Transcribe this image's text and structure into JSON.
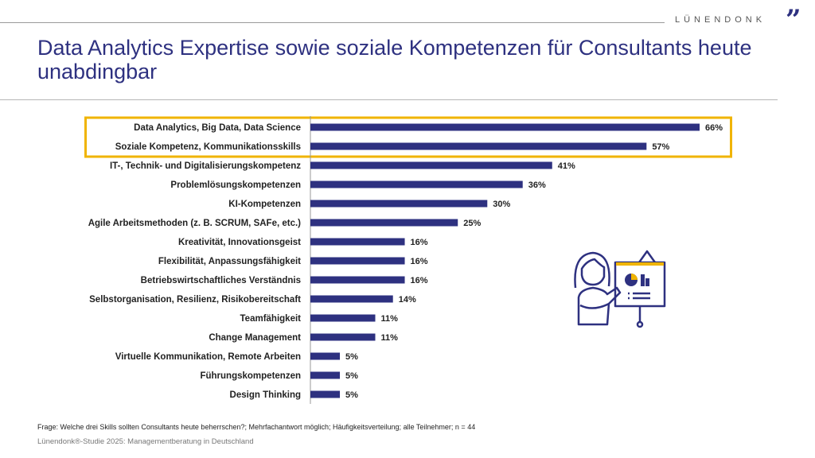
{
  "header": {
    "brand": "LÜNENDONK",
    "title": "Data Analytics Expertise sowie soziale Kompetenzen für Consultants heute unabdingbar"
  },
  "colors": {
    "bar": "#2e3180",
    "highlight": "#f0b400",
    "title": "#2e3180"
  },
  "chart_data": {
    "type": "bar",
    "orientation": "horizontal",
    "title": "Data Analytics Expertise sowie soziale Kompetenzen für Consultants heute unabdingbar",
    "xlabel": "",
    "ylabel": "",
    "xlim": [
      0,
      66
    ],
    "categories": [
      "Data Analytics, Big Data, Data Science",
      "Soziale Kompetenz, Kommunikationsskills",
      "IT-, Technik- und Digitalisierungskompetenz",
      "Problemlösungskompetenzen",
      "KI-Kompetenzen",
      "Agile Arbeitsmethoden (z. B. SCRUM, SAFe, etc.)",
      "Kreativität, Innovationsgeist",
      "Flexibilität, Anpassungsfähigkeit",
      "Betriebswirtschaftliches Verständnis",
      "Selbstorganisation, Resilienz, Risikobereitschaft",
      "Teamfähigkeit",
      "Change Management",
      "Virtuelle Kommunikation, Remote Arbeiten",
      "Führungskompetenzen",
      "Design Thinking"
    ],
    "values": [
      66,
      57,
      41,
      36,
      30,
      25,
      16,
      16,
      16,
      14,
      11,
      11,
      5,
      5,
      5
    ],
    "value_labels": [
      "66%",
      "57%",
      "41%",
      "36%",
      "30%",
      "25%",
      "16%",
      "16%",
      "16%",
      "14%",
      "11%",
      "11%",
      "5%",
      "5%",
      "5%"
    ],
    "highlighted": [
      0,
      1
    ]
  },
  "footer": {
    "question": "Frage: Welche drei Skills sollten Consultants heute beherrschen?; Mehrfachantwort möglich; Häufigkeitsverteilung; alle Teilnehmer; n = 44",
    "source": "Lünendonk®-Studie 2025: Managementberatung in Deutschland"
  }
}
